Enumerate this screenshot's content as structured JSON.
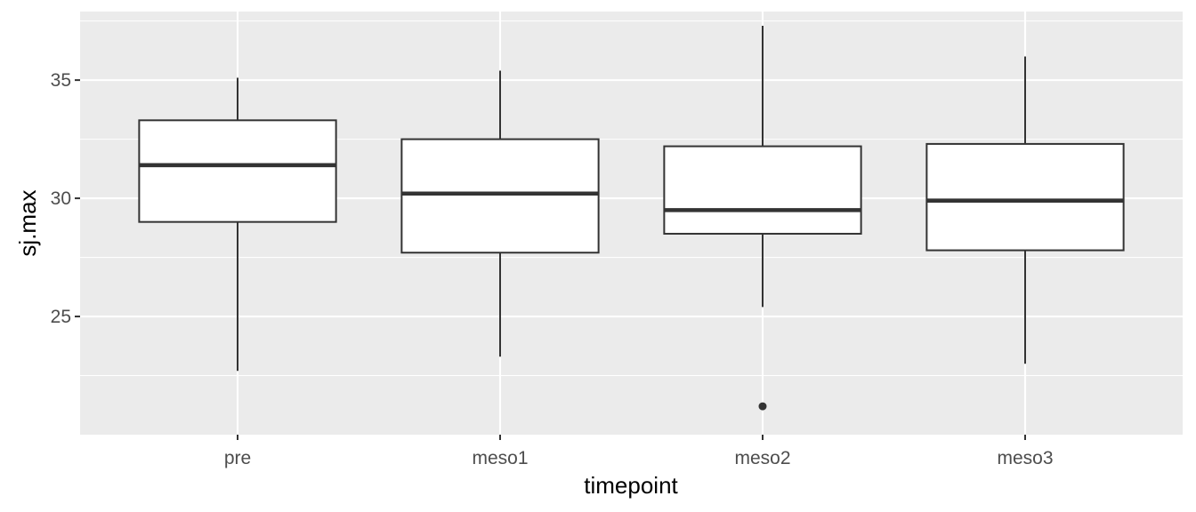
{
  "chart_data": {
    "type": "boxplot",
    "xlabel": "timepoint",
    "ylabel": "sj.max",
    "ylim": [
      20.0,
      37.9
    ],
    "yticks": [
      25,
      30,
      35
    ],
    "grid": true,
    "categories": [
      "pre",
      "meso1",
      "meso2",
      "meso3"
    ],
    "boxes": [
      {
        "category": "pre",
        "lower_whisker": 22.7,
        "q1": 29.0,
        "median": 31.4,
        "q3": 33.3,
        "upper_whisker": 35.1,
        "outliers": []
      },
      {
        "category": "meso1",
        "lower_whisker": 23.3,
        "q1": 27.7,
        "median": 30.2,
        "q3": 32.5,
        "upper_whisker": 35.4,
        "outliers": []
      },
      {
        "category": "meso2",
        "lower_whisker": 25.4,
        "q1": 28.5,
        "median": 29.5,
        "q3": 32.2,
        "upper_whisker": 37.3,
        "outliers": [
          21.2
        ]
      },
      {
        "category": "meso3",
        "lower_whisker": 23.0,
        "q1": 27.8,
        "median": 29.9,
        "q3": 32.3,
        "upper_whisker": 36.0,
        "outliers": []
      }
    ]
  }
}
